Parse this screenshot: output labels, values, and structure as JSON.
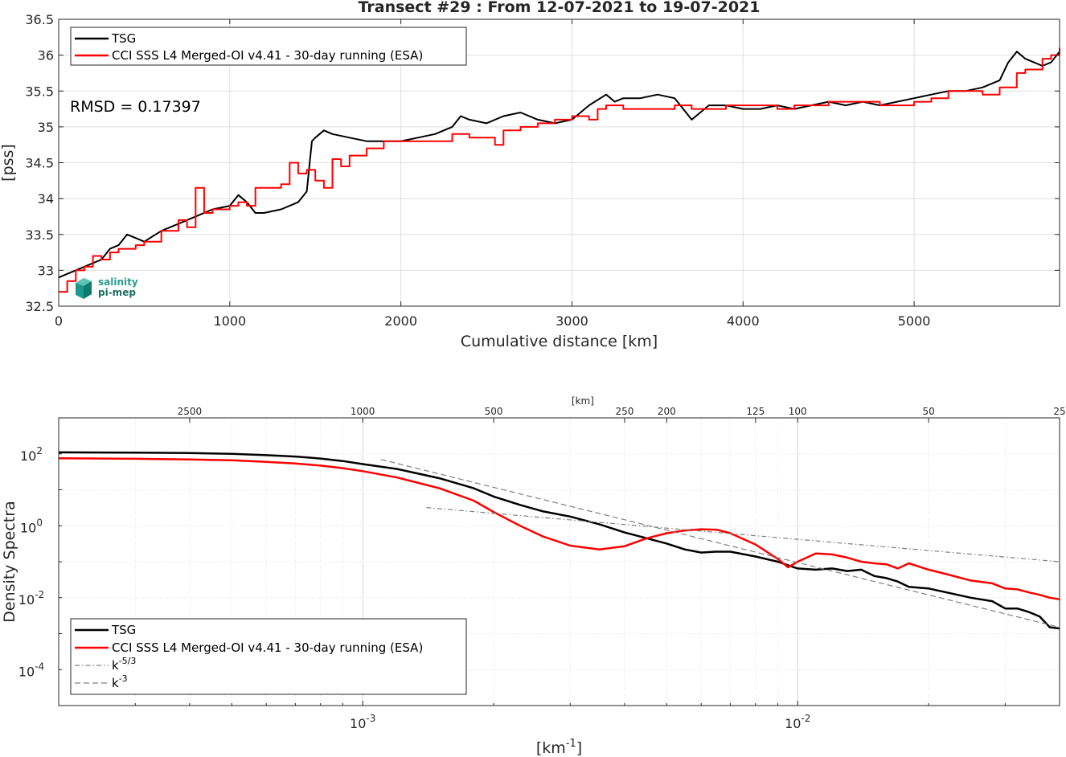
{
  "colors": {
    "tsg": "#000000",
    "cci": "#ff0000",
    "ref": "#808080",
    "grid": "#dfdfdf",
    "logo": "#1a9a8a"
  },
  "logo": {
    "line1": "salinity",
    "line2": "pi-mep"
  },
  "chart_data": [
    {
      "type": "line",
      "title": "Transect #29 : From 12-07-2021 to 19-07-2021",
      "xlabel": "Cumulative distance [km]",
      "ylabel": "[pss]",
      "xlim": [
        0,
        5850
      ],
      "ylim": [
        32.5,
        36.5
      ],
      "xticks": [
        0,
        1000,
        2000,
        3000,
        4000,
        5000
      ],
      "yticks": [
        32.5,
        33,
        33.5,
        34,
        34.5,
        35,
        35.5,
        36,
        36.5
      ],
      "grid": true,
      "legend_position": "top-left",
      "annotation": "RMSD = 0.17397",
      "series": [
        {
          "name": "TSG",
          "x": [
            0,
            50,
            100,
            150,
            200,
            250,
            300,
            350,
            400,
            450,
            500,
            600,
            700,
            800,
            900,
            1000,
            1050,
            1100,
            1150,
            1200,
            1300,
            1400,
            1450,
            1480,
            1500,
            1550,
            1600,
            1700,
            1800,
            1900,
            2000,
            2100,
            2200,
            2300,
            2350,
            2400,
            2500,
            2600,
            2700,
            2800,
            2900,
            3000,
            3100,
            3200,
            3250,
            3300,
            3400,
            3500,
            3600,
            3700,
            3750,
            3800,
            3900,
            4000,
            4100,
            4200,
            4300,
            4400,
            4500,
            4600,
            4700,
            4800,
            4900,
            5000,
            5100,
            5200,
            5300,
            5400,
            5500,
            5550,
            5600,
            5650,
            5700,
            5750,
            5800,
            5850
          ],
          "values": [
            32.9,
            32.95,
            33.0,
            33.05,
            33.1,
            33.15,
            33.3,
            33.35,
            33.5,
            33.45,
            33.4,
            33.55,
            33.65,
            33.75,
            33.85,
            33.9,
            34.05,
            33.95,
            33.8,
            33.8,
            33.85,
            33.95,
            34.1,
            34.8,
            34.85,
            34.95,
            34.9,
            34.85,
            34.8,
            34.8,
            34.8,
            34.85,
            34.9,
            35.0,
            35.15,
            35.1,
            35.05,
            35.15,
            35.2,
            35.1,
            35.05,
            35.1,
            35.3,
            35.45,
            35.35,
            35.4,
            35.4,
            35.45,
            35.4,
            35.1,
            35.2,
            35.3,
            35.3,
            35.25,
            35.25,
            35.3,
            35.25,
            35.3,
            35.35,
            35.3,
            35.35,
            35.3,
            35.35,
            35.4,
            35.45,
            35.5,
            35.5,
            35.55,
            35.65,
            35.9,
            36.05,
            35.95,
            35.9,
            35.85,
            35.9,
            36.05
          ]
        },
        {
          "name": "CCI SSS L4 Merged-OI v4.41 - 30-day running (ESA)",
          "x": [
            0,
            50,
            100,
            150,
            200,
            250,
            300,
            350,
            400,
            450,
            500,
            600,
            700,
            750,
            800,
            850,
            900,
            1000,
            1050,
            1100,
            1150,
            1200,
            1300,
            1350,
            1400,
            1450,
            1500,
            1550,
            1600,
            1650,
            1700,
            1800,
            1900,
            2000,
            2100,
            2200,
            2300,
            2400,
            2500,
            2550,
            2600,
            2700,
            2800,
            2900,
            3000,
            3100,
            3150,
            3200,
            3250,
            3300,
            3400,
            3500,
            3600,
            3700,
            3800,
            3900,
            4000,
            4100,
            4200,
            4300,
            4400,
            4500,
            4600,
            4700,
            4800,
            4900,
            5000,
            5100,
            5200,
            5300,
            5400,
            5500,
            5600,
            5650,
            5700,
            5750,
            5800,
            5850
          ],
          "values": [
            32.7,
            32.85,
            33.0,
            33.05,
            33.2,
            33.15,
            33.25,
            33.3,
            33.3,
            33.35,
            33.4,
            33.55,
            33.7,
            33.6,
            34.15,
            33.8,
            33.85,
            33.9,
            33.95,
            33.9,
            34.15,
            34.15,
            34.2,
            34.5,
            34.35,
            34.4,
            34.25,
            34.15,
            34.55,
            34.45,
            34.6,
            34.7,
            34.8,
            34.8,
            34.8,
            34.8,
            34.9,
            34.85,
            34.85,
            34.75,
            34.95,
            35.0,
            35.05,
            35.1,
            35.15,
            35.1,
            35.25,
            35.3,
            35.3,
            35.25,
            35.25,
            35.25,
            35.3,
            35.25,
            35.25,
            35.3,
            35.3,
            35.3,
            35.25,
            35.3,
            35.3,
            35.35,
            35.35,
            35.35,
            35.3,
            35.3,
            35.35,
            35.4,
            35.5,
            35.5,
            35.45,
            35.55,
            35.75,
            35.8,
            35.8,
            35.95,
            36.0,
            36.1
          ]
        }
      ]
    },
    {
      "type": "line",
      "xlabel": "[km",
      "xlabel_sup": "-1",
      "xlabel_end": "]",
      "ylabel": "Density Spectra",
      "top_axis_label": "[km]",
      "x_scale": "log",
      "y_scale": "log",
      "xlim": [
        0.0002,
        0.04
      ],
      "ylim": [
        1e-05,
        1000
      ],
      "xticks": [
        0.001,
        0.01
      ],
      "xtick_labels": [
        {
          "base": "10",
          "exp": "-3"
        },
        {
          "base": "10",
          "exp": "-2"
        }
      ],
      "yticks": [
        0.0001,
        0.01,
        1,
        100
      ],
      "ytick_labels": [
        {
          "base": "10",
          "exp": "-4"
        },
        {
          "base": "10",
          "exp": "-2"
        },
        {
          "base": "10",
          "exp": "0"
        },
        {
          "base": "10",
          "exp": "2"
        }
      ],
      "top_ticks": [
        2500,
        1000,
        500,
        250,
        200,
        125,
        100,
        50,
        25
      ],
      "grid": true,
      "legend_position": "bottom-left",
      "series": [
        {
          "name": "TSG",
          "x": [
            0.0002,
            0.0003,
            0.0004,
            0.0005,
            0.0006,
            0.0007,
            0.0008,
            0.0009,
            0.001,
            0.0012,
            0.0015,
            0.0018,
            0.002,
            0.0023,
            0.0026,
            0.003,
            0.0035,
            0.004,
            0.0045,
            0.005,
            0.0055,
            0.006,
            0.0065,
            0.007,
            0.008,
            0.009,
            0.01,
            0.011,
            0.012,
            0.013,
            0.014,
            0.015,
            0.016,
            0.017,
            0.018,
            0.02,
            0.022,
            0.025,
            0.028,
            0.03,
            0.032,
            0.034,
            0.036,
            0.038,
            0.04
          ],
          "values": [
            110,
            108,
            105,
            100,
            92,
            84,
            74,
            63,
            52,
            38,
            21,
            11,
            6.5,
            3.8,
            2.5,
            1.8,
            1.1,
            0.65,
            0.45,
            0.32,
            0.22,
            0.18,
            0.19,
            0.19,
            0.14,
            0.1,
            0.065,
            0.06,
            0.065,
            0.055,
            0.06,
            0.04,
            0.035,
            0.028,
            0.02,
            0.018,
            0.014,
            0.01,
            0.008,
            0.005,
            0.005,
            0.004,
            0.003,
            0.0015,
            0.0014
          ]
        },
        {
          "name": "CCI SSS L4 Merged-OI v4.41 - 30-day running (ESA)",
          "x": [
            0.0002,
            0.0003,
            0.0004,
            0.0005,
            0.0006,
            0.0007,
            0.0008,
            0.0009,
            0.001,
            0.0012,
            0.0015,
            0.0018,
            0.002,
            0.0023,
            0.0026,
            0.003,
            0.0035,
            0.004,
            0.0045,
            0.005,
            0.0055,
            0.006,
            0.0065,
            0.007,
            0.008,
            0.009,
            0.0095,
            0.01,
            0.011,
            0.012,
            0.013,
            0.014,
            0.015,
            0.016,
            0.017,
            0.018,
            0.02,
            0.022,
            0.025,
            0.028,
            0.03,
            0.032,
            0.034,
            0.036,
            0.038,
            0.04
          ],
          "values": [
            75,
            73,
            70,
            66,
            60,
            54,
            47,
            40,
            33,
            22,
            11,
            5,
            2.4,
            1.0,
            0.5,
            0.28,
            0.22,
            0.27,
            0.45,
            0.62,
            0.74,
            0.8,
            0.78,
            0.62,
            0.3,
            0.12,
            0.07,
            0.1,
            0.17,
            0.16,
            0.13,
            0.1,
            0.09,
            0.085,
            0.065,
            0.09,
            0.06,
            0.045,
            0.03,
            0.025,
            0.018,
            0.017,
            0.014,
            0.012,
            0.01,
            0.009
          ]
        },
        {
          "name": "k",
          "name_sup": "-5/3",
          "x": [
            0.0014,
            0.04
          ],
          "values": [
            3.2,
            0.1
          ]
        },
        {
          "name": "k",
          "name_sup": "-3",
          "x": [
            0.0011,
            0.04
          ],
          "values": [
            70,
            0.0015
          ]
        }
      ]
    }
  ]
}
